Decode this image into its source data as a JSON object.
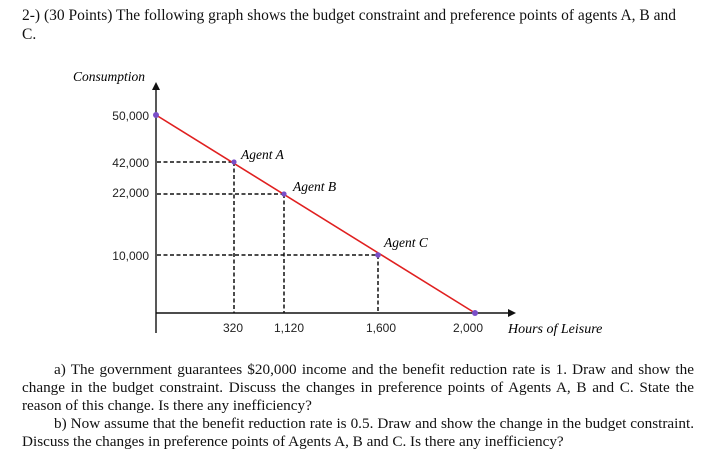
{
  "question": {
    "header": "2-) (30 Points) The following graph shows the budget constraint and preference points of agents A, B and C.",
    "part_a": "a) The government guarantees $20,000 income and the benefit reduction rate is 1. Draw and show the change in the budget constraint. Discuss the changes in preference points of Agents A, B and C. State the reason of this change. Is there any inefficiency?",
    "part_b": "b) Now assume that the benefit reduction rate is 0.5. Draw and show the change in the budget constraint. Discuss the changes in preference points of Agents A, B and C. Is there any inefficiency?"
  },
  "chart_data": {
    "type": "line",
    "title": "",
    "ylabel": "Consumption",
    "xlabel": "Hours of Leisure",
    "y_tick_labels": [
      "50,000",
      "42,000",
      "22,000",
      "10,000"
    ],
    "x_tick_labels": [
      "320",
      "1,120",
      "1,600",
      "2,000"
    ],
    "budget_line": {
      "x": [
        0,
        2000
      ],
      "y": [
        50000,
        0
      ]
    },
    "agents": [
      {
        "name": "Agent A",
        "x": 320,
        "y": 42000
      },
      {
        "name": "Agent B",
        "x": 1120,
        "y": 22000
      },
      {
        "name": "Agent C",
        "x": 1600,
        "y": 10000
      }
    ],
    "colors": {
      "budget_line": "#e02020",
      "point": "#7a4ec8",
      "axis": "#111111"
    }
  }
}
